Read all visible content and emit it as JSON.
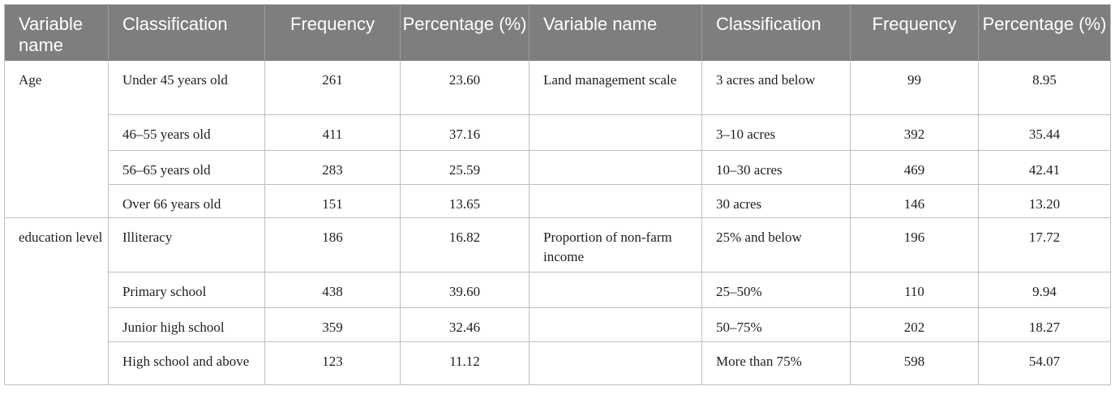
{
  "headers": [
    "Variable name",
    "Classification",
    "Frequency",
    "Percentage (%)",
    "Variable name",
    "Classification",
    "Frequency",
    "Percentage (%)"
  ],
  "groups": [
    {
      "left_variable": "Age",
      "right_variable": "Land management scale",
      "rows": [
        {
          "left_class": "Under 45 years old",
          "left_freq": "261",
          "left_pct": "23.60",
          "right_class": "3 acres and below",
          "right_freq": "99",
          "right_pct": "8.95"
        },
        {
          "left_class": "46–55 years old",
          "left_freq": "411",
          "left_pct": "37.16",
          "right_class": "3–10 acres",
          "right_freq": "392",
          "right_pct": "35.44"
        },
        {
          "left_class": "56–65 years old",
          "left_freq": "283",
          "left_pct": "25.59",
          "right_class": "10–30 acres",
          "right_freq": "469",
          "right_pct": "42.41"
        },
        {
          "left_class": "Over 66 years old",
          "left_freq": "151",
          "left_pct": "13.65",
          "right_class": "30 acres",
          "right_freq": "146",
          "right_pct": "13.20"
        }
      ]
    },
    {
      "left_variable": "education level",
      "right_variable": "Proportion of non-farm income",
      "rows": [
        {
          "left_class": "Illiteracy",
          "left_freq": "186",
          "left_pct": "16.82",
          "right_class": "25% and below",
          "right_freq": "196",
          "right_pct": "17.72"
        },
        {
          "left_class": "Primary school",
          "left_freq": "438",
          "left_pct": "39.60",
          "right_class": "25–50%",
          "right_freq": "110",
          "right_pct": "9.94"
        },
        {
          "left_class": "Junior high school",
          "left_freq": "359",
          "left_pct": "32.46",
          "right_class": "50–75%",
          "right_freq": "202",
          "right_pct": "18.27"
        },
        {
          "left_class": "High school and above",
          "left_freq": "123",
          "left_pct": "11.12",
          "right_class": "More than 75%",
          "right_freq": "598",
          "right_pct": "54.07"
        }
      ]
    }
  ]
}
